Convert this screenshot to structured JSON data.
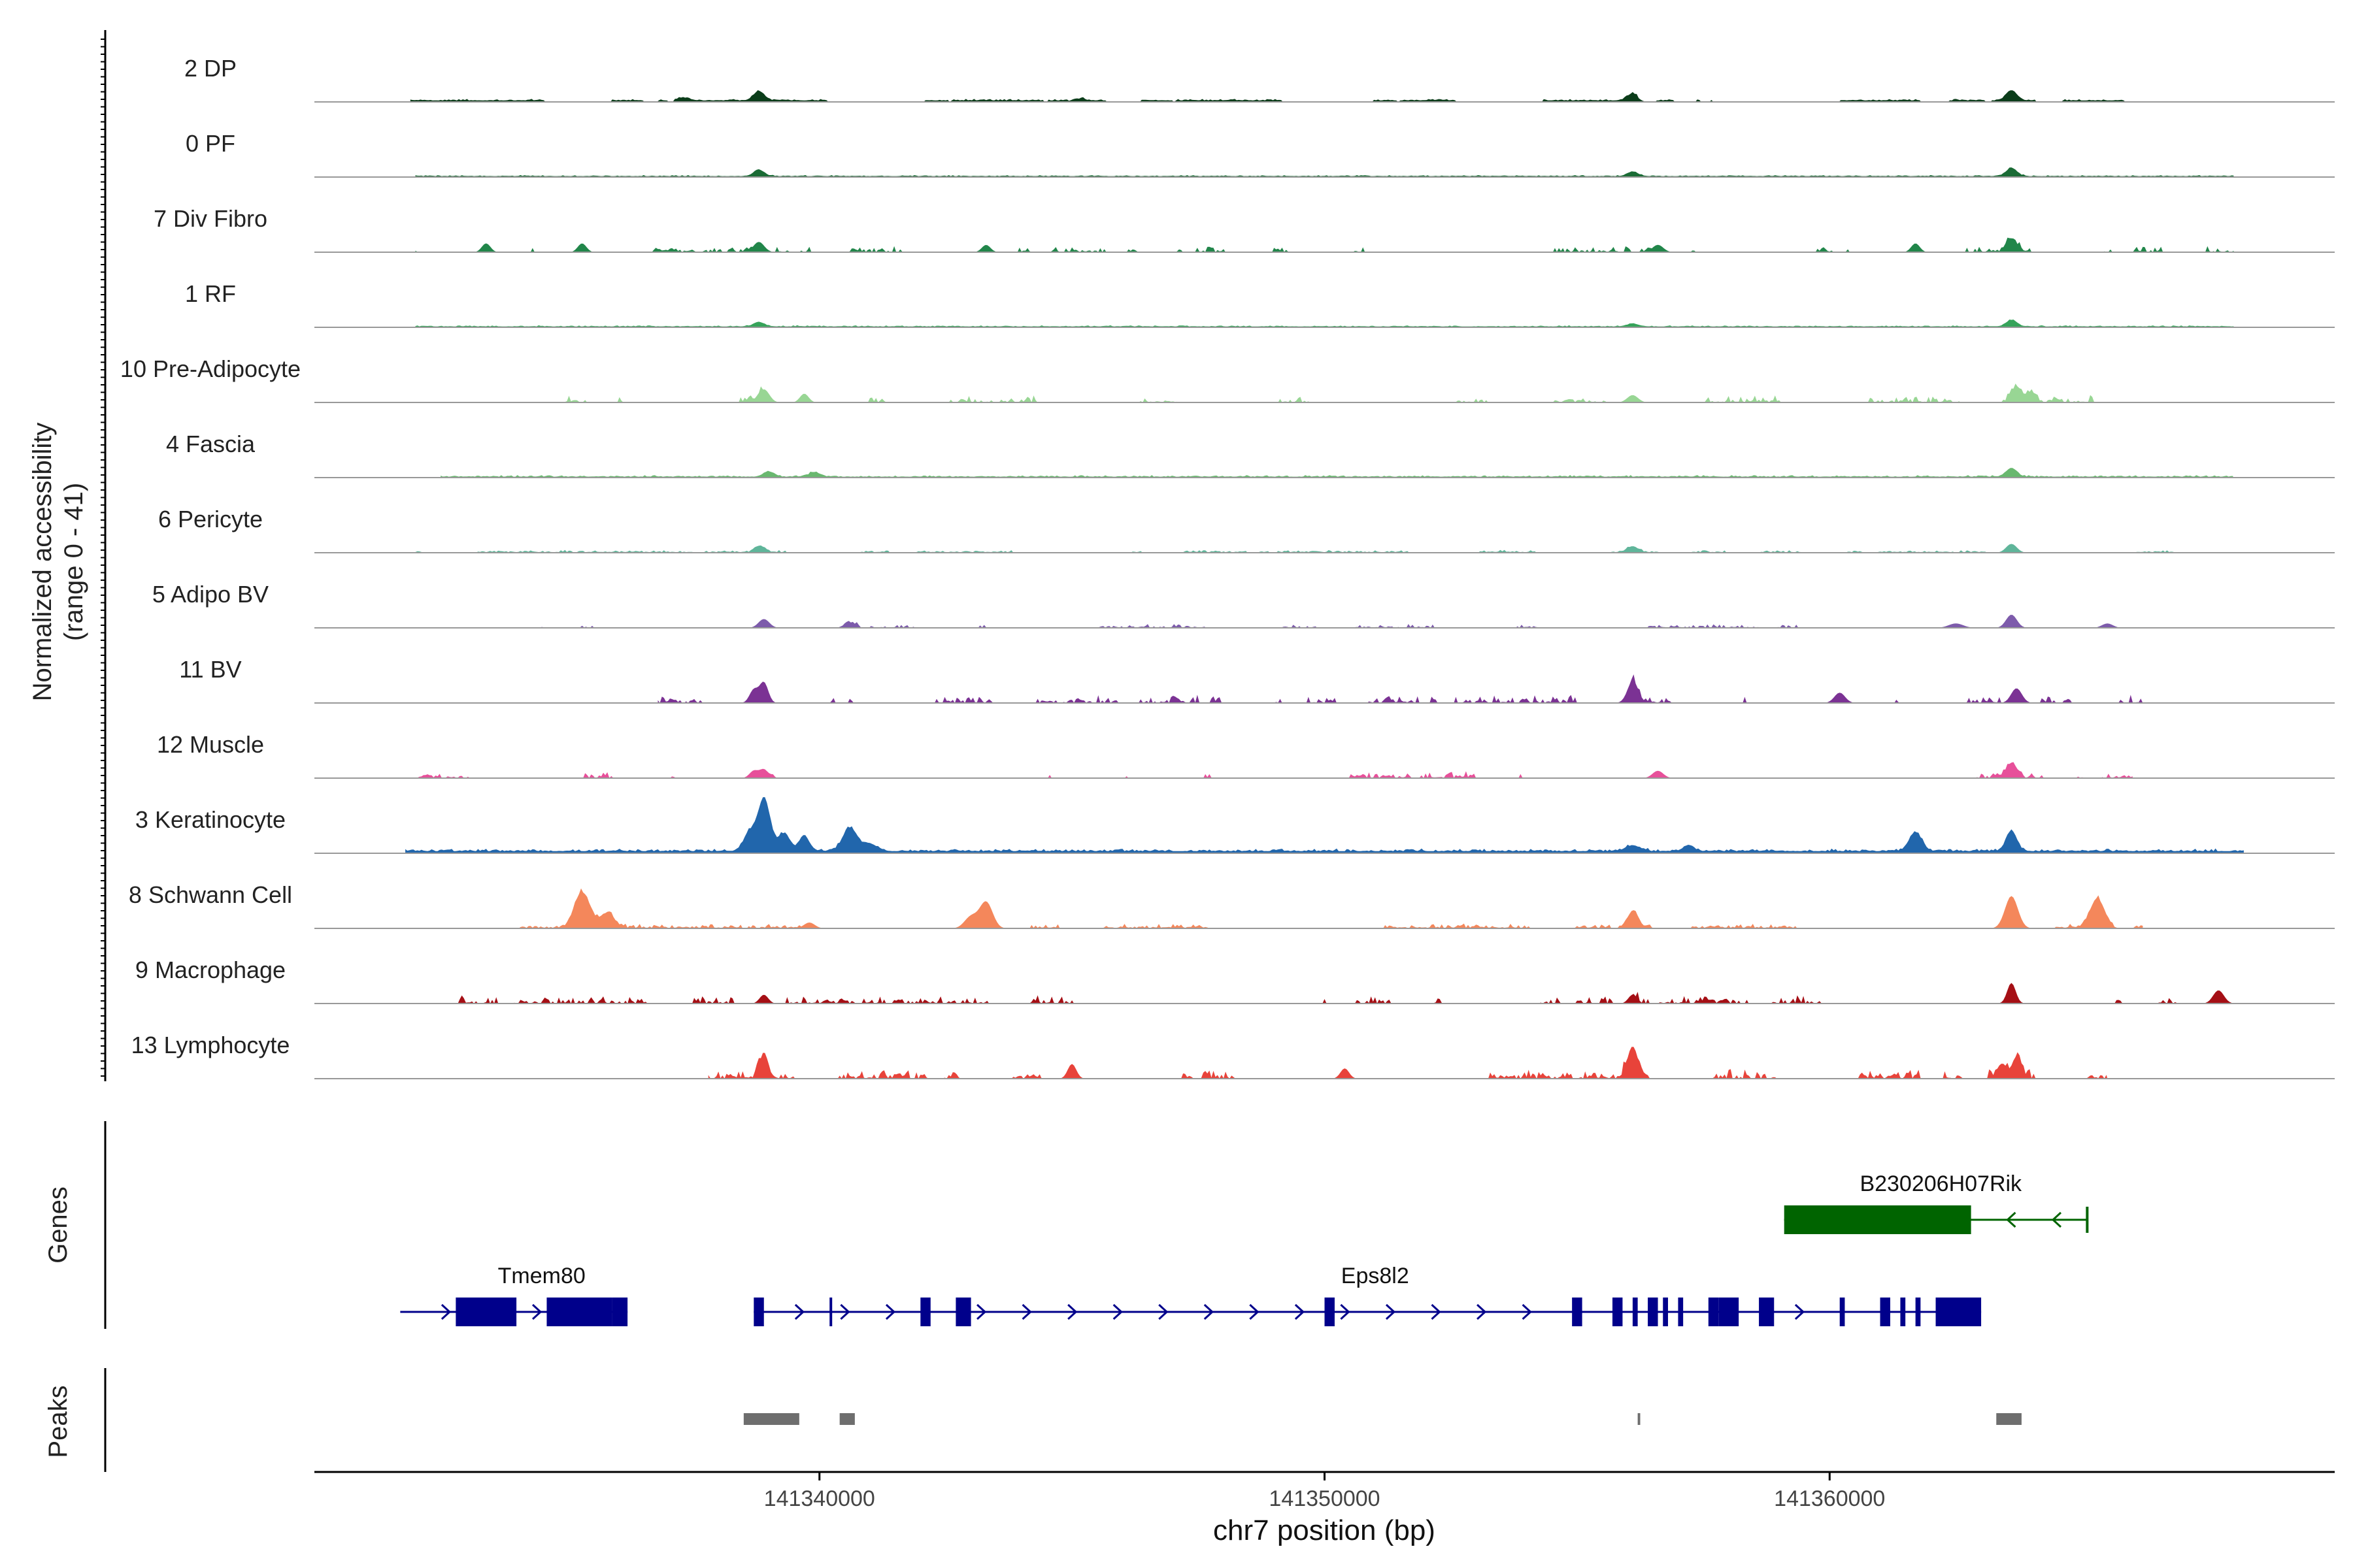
{
  "chart_data": {
    "type": "area",
    "title": "",
    "ylabel": "Normalized accessibility",
    "ylabel_range": "(range 0 - 41)",
    "ylim": [
      0,
      41
    ],
    "xlabel": "chr7 position (bp)",
    "xlim": [
      141330000,
      141370000
    ],
    "x_ticks": [
      141340000,
      141350000,
      141360000
    ],
    "x_tick_labels": [
      "141340000",
      "141350000",
      "141360000"
    ],
    "tracks": [
      {
        "name": "2 DP",
        "color": "#0b3d1a",
        "start": 141331900,
        "end": 141368000,
        "bg": 0.5,
        "noise": 0.3,
        "density": 0.6,
        "peaks": [
          [
            141338800,
            3.2,
            150
          ],
          [
            141356100,
            2.4,
            150
          ],
          [
            141363600,
            3.5,
            150
          ],
          [
            141337300,
            1.0,
            150
          ],
          [
            141345100,
            1.2,
            150
          ]
        ]
      },
      {
        "name": "0 PF",
        "color": "#1a6b35",
        "start": 141332000,
        "end": 141368000,
        "bg": 0.3,
        "noise": 0.2,
        "density": 1.0,
        "peaks": [
          [
            141338800,
            2.2,
            150
          ],
          [
            141356100,
            1.5,
            150
          ],
          [
            141363600,
            2.8,
            150
          ]
        ]
      },
      {
        "name": "7 Div Fibro",
        "color": "#21864a",
        "start": 141332000,
        "end": 141368000,
        "bg": 0.0,
        "noise": 1.2,
        "density": 0.35,
        "peaks": [
          [
            141333400,
            3.0,
            120
          ],
          [
            141335300,
            3.0,
            120
          ],
          [
            141338800,
            3.5,
            150
          ],
          [
            141343300,
            2.5,
            120
          ],
          [
            141356600,
            2.5,
            150
          ],
          [
            141361700,
            3.0,
            120
          ],
          [
            141363600,
            4.5,
            150
          ]
        ]
      },
      {
        "name": "1 RF",
        "color": "#36a35a",
        "start": 141332000,
        "end": 141368000,
        "bg": 0.3,
        "noise": 0.2,
        "density": 1.0,
        "peaks": [
          [
            141338800,
            1.5,
            150
          ],
          [
            141356100,
            1.0,
            150
          ],
          [
            141363600,
            2.2,
            150
          ]
        ]
      },
      {
        "name": "10 Pre-Adipocyte",
        "color": "#98d694",
        "start": 141333000,
        "end": 141368000,
        "bg": 0.0,
        "noise": 1.3,
        "density": 0.25,
        "peaks": [
          [
            141338900,
            4.5,
            150
          ],
          [
            141339700,
            3.0,
            120
          ],
          [
            141356100,
            2.5,
            150
          ],
          [
            141363700,
            5.5,
            150
          ],
          [
            141364000,
            3.5,
            120
          ]
        ]
      },
      {
        "name": "4 Fascia",
        "color": "#69b86f",
        "start": 141332500,
        "end": 141368000,
        "bg": 0.3,
        "noise": 0.3,
        "density": 1.0,
        "peaks": [
          [
            141339000,
            1.8,
            150
          ],
          [
            141339900,
            1.5,
            150
          ],
          [
            141363600,
            3.0,
            150
          ]
        ]
      },
      {
        "name": "6 Pericyte",
        "color": "#5fb59a",
        "start": 141332000,
        "end": 141368000,
        "bg": 0.2,
        "noise": 0.4,
        "density": 0.5,
        "peaks": [
          [
            141338800,
            2.0,
            150
          ],
          [
            141356100,
            2.0,
            150
          ],
          [
            141363600,
            3.0,
            150
          ]
        ]
      },
      {
        "name": "5 Adipo BV",
        "color": "#7d5bab",
        "start": 141334500,
        "end": 141366000,
        "bg": 0.0,
        "noise": 0.8,
        "density": 0.3,
        "peaks": [
          [
            141338900,
            3.0,
            150
          ],
          [
            141340600,
            1.5,
            150
          ],
          [
            141362500,
            1.5,
            200
          ],
          [
            141363600,
            4.5,
            150
          ],
          [
            141365500,
            1.5,
            150
          ]
        ]
      },
      {
        "name": "11 BV",
        "color": "#7b3294",
        "start": 141336800,
        "end": 141366200,
        "bg": 0.0,
        "noise": 1.5,
        "density": 0.3,
        "peaks": [
          [
            141338700,
            4.5,
            120
          ],
          [
            141338900,
            7.0,
            120
          ],
          [
            141356100,
            7.0,
            150
          ],
          [
            141360200,
            3.5,
            150
          ],
          [
            141363700,
            5.0,
            150
          ]
        ]
      },
      {
        "name": "12 Muscle",
        "color": "#e7509a",
        "start": 141332000,
        "end": 141366000,
        "bg": 0.0,
        "noise": 1.2,
        "density": 0.2,
        "peaks": [
          [
            141338700,
            2.5,
            120
          ],
          [
            141338900,
            3.0,
            120
          ],
          [
            141356600,
            2.5,
            150
          ],
          [
            141363600,
            5.0,
            150
          ]
        ]
      },
      {
        "name": "3 Keratinocyte",
        "color": "#2166ac",
        "start": 141331800,
        "end": 141368200,
        "bg": 0.7,
        "noise": 0.5,
        "density": 1.0,
        "peaks": [
          [
            141338900,
            18.0,
            180
          ],
          [
            141338600,
            6.0,
            150
          ],
          [
            141339300,
            6.0,
            150
          ],
          [
            141339700,
            5.0,
            150
          ],
          [
            141340600,
            8.0,
            200
          ],
          [
            141341000,
            2.5,
            200
          ],
          [
            141356100,
            2.0,
            200
          ],
          [
            141357200,
            1.8,
            150
          ],
          [
            141361700,
            6.5,
            180
          ],
          [
            141363600,
            7.0,
            150
          ]
        ]
      },
      {
        "name": "8 Schwann Cell",
        "color": "#f4875b",
        "start": 141333800,
        "end": 141366200,
        "bg": 0.2,
        "noise": 0.8,
        "density": 0.45,
        "peaks": [
          [
            141335300,
            12.0,
            220
          ],
          [
            141335800,
            5.0,
            200
          ],
          [
            141343300,
            9.0,
            180
          ],
          [
            141343000,
            4.0,
            180
          ],
          [
            141356100,
            5.5,
            150
          ],
          [
            141363600,
            11.0,
            180
          ],
          [
            141365300,
            10.0,
            200
          ],
          [
            141339800,
            2.0,
            150
          ]
        ]
      },
      {
        "name": "9 Macrophage",
        "color": "#a50f15",
        "start": 141332000,
        "end": 141368200,
        "bg": 0.0,
        "noise": 1.5,
        "density": 0.4,
        "peaks": [
          [
            141338900,
            3.0,
            120
          ],
          [
            141356100,
            3.0,
            120
          ],
          [
            141363600,
            7.0,
            120
          ],
          [
            141367700,
            4.5,
            150
          ]
        ]
      },
      {
        "name": "13 Lymphocyte",
        "color": "#e8433a",
        "start": 141337800,
        "end": 141365500,
        "bg": 0.0,
        "noise": 1.8,
        "density": 0.35,
        "peaks": [
          [
            141338900,
            8.5,
            120
          ],
          [
            141345000,
            5.0,
            120
          ],
          [
            141350400,
            3.5,
            120
          ],
          [
            141356100,
            11.0,
            150
          ],
          [
            141363700,
            7.5,
            130
          ],
          [
            141363400,
            5.0,
            120
          ]
        ]
      }
    ],
    "genes_label": "Genes",
    "genes": [
      {
        "name": "B230206H07Rik",
        "strand": "-",
        "color": "#006400",
        "start": 141359100,
        "end": 141365100,
        "exons": [
          [
            141359100,
            141362800
          ]
        ]
      },
      {
        "name": "Tmem80",
        "strand": "+",
        "color": "#00008b",
        "start": 141331700,
        "end": 141336200,
        "exons": [
          [
            141332800,
            141334000
          ],
          [
            141334600,
            141335900
          ],
          [
            141335900,
            141336200
          ]
        ]
      },
      {
        "name": "Eps8l2",
        "strand": "+",
        "color": "#00008b",
        "start": 141338700,
        "end": 141363000,
        "exons": [
          [
            141338700,
            141338900
          ],
          [
            141340200,
            141340230
          ],
          [
            141342000,
            141342200
          ],
          [
            141342700,
            141343000
          ],
          [
            141350000,
            141350200
          ],
          [
            141354900,
            141355100
          ],
          [
            141355700,
            141355900
          ],
          [
            141356100,
            141356200
          ],
          [
            141356400,
            141356600
          ],
          [
            141356700,
            141356800
          ],
          [
            141357000,
            141357100
          ],
          [
            141357600,
            141357800
          ],
          [
            141357800,
            141358200
          ],
          [
            141358600,
            141358900
          ],
          [
            141360200,
            141360300
          ],
          [
            141361000,
            141361200
          ],
          [
            141361400,
            141361500
          ],
          [
            141361700,
            141361800
          ],
          [
            141362100,
            141363000
          ]
        ]
      }
    ],
    "peaks_label": "Peaks",
    "peak_regions": [
      [
        141338500,
        141339600
      ],
      [
        141340400,
        141340700
      ],
      [
        141356200,
        141356250
      ],
      [
        141363300,
        141363800
      ]
    ]
  }
}
